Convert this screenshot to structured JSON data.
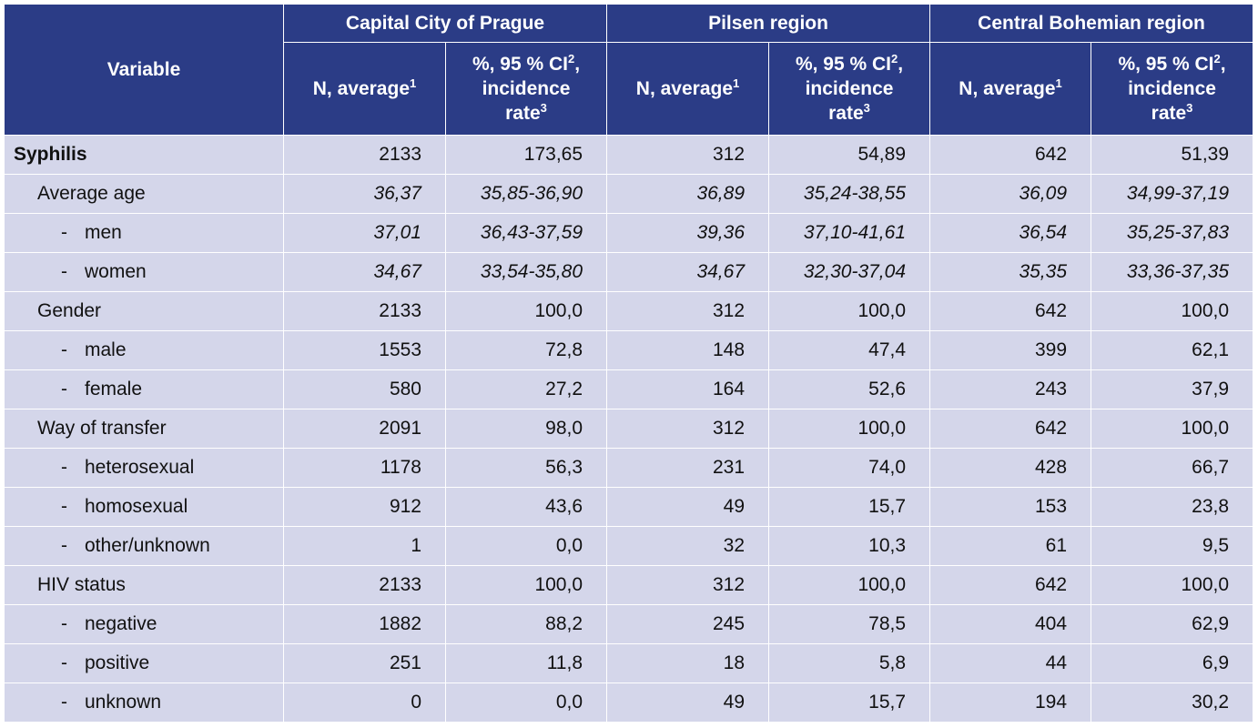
{
  "header": {
    "variable": "Variable",
    "regions": [
      "Capital City of Prague",
      "Pilsen region",
      "Central Bohemian region"
    ],
    "col_n": "N, average",
    "col_n_sup": "1",
    "col_pct_l1": "%, 95 % CI",
    "col_pct_l1_sup": "2",
    "col_pct_l1_tail": ",",
    "col_pct_l2": "incidence",
    "col_pct_l3": "rate",
    "col_pct_l3_sup": "3"
  },
  "rows": [
    {
      "label": "Syphilis",
      "dash": "",
      "v": [
        "2133",
        "173,65",
        "312",
        "54,89",
        "642",
        "51,39"
      ]
    },
    {
      "label": "Average age",
      "dash": "",
      "v": [
        "36,37",
        "35,85-36,90",
        "36,89",
        "35,24-38,55",
        "36,09",
        "34,99-37,19"
      ]
    },
    {
      "label": "men",
      "dash": "-",
      "v": [
        "37,01",
        "36,43-37,59",
        "39,36",
        "37,10-41,61",
        "36,54",
        "35,25-37,83"
      ]
    },
    {
      "label": "women",
      "dash": "-",
      "v": [
        "34,67",
        "33,54-35,80",
        "34,67",
        "32,30-37,04",
        "35,35",
        "33,36-37,35"
      ]
    },
    {
      "label": "Gender",
      "dash": "",
      "v": [
        "2133",
        "100,0",
        "312",
        "100,0",
        "642",
        "100,0"
      ]
    },
    {
      "label": "male",
      "dash": "-",
      "v": [
        "1553",
        "72,8",
        "148",
        "47,4",
        "399",
        "62,1"
      ]
    },
    {
      "label": "female",
      "dash": "-",
      "v": [
        "580",
        "27,2",
        "164",
        "52,6",
        "243",
        "37,9"
      ]
    },
    {
      "label": "Way of transfer",
      "dash": "",
      "v": [
        "2091",
        "98,0",
        "312",
        "100,0",
        "642",
        "100,0"
      ]
    },
    {
      "label": "heterosexual",
      "dash": "-",
      "v": [
        "1178",
        "56,3",
        "231",
        "74,0",
        "428",
        "66,7"
      ]
    },
    {
      "label": "homosexual",
      "dash": "-",
      "v": [
        "912",
        "43,6",
        "49",
        "15,7",
        "153",
        "23,8"
      ]
    },
    {
      "label": "other/unknown",
      "dash": "-",
      "v": [
        "1",
        "0,0",
        "32",
        "10,3",
        "61",
        "9,5"
      ]
    },
    {
      "label": "HIV status",
      "dash": "",
      "v": [
        "2133",
        "100,0",
        "312",
        "100,0",
        "642",
        "100,0"
      ]
    },
    {
      "label": "negative",
      "dash": "-",
      "v": [
        "1882",
        "88,2",
        "245",
        "78,5",
        "404",
        "62,9"
      ]
    },
    {
      "label": "positive",
      "dash": "-",
      "v": [
        "251",
        "11,8",
        "18",
        "5,8",
        "44",
        "6,9"
      ]
    },
    {
      "label": "unknown",
      "dash": "-",
      "v": [
        "0",
        "0,0",
        "49",
        "15,7",
        "194",
        "30,2"
      ]
    }
  ]
}
